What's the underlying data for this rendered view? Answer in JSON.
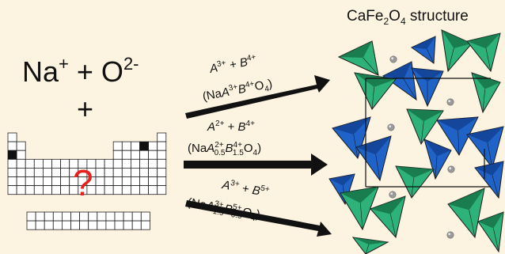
{
  "reactants": {
    "line1": {
      "a": "Na",
      "a_sup": "+",
      "plus": " + ",
      "b": "O",
      "b_sup": "2-"
    },
    "plus": "+",
    "question": "?"
  },
  "structure_title": {
    "base1": "CaFe",
    "sub1": "2",
    "base2": "O",
    "sub2": "4",
    "rest": " structure"
  },
  "arrows": [
    {
      "top": {
        "a": "A",
        "a_sup": "3+",
        "plus": " + ",
        "b": "B",
        "b_sup": "4+"
      },
      "bottom": {
        "open": "(Na",
        "a": "A",
        "a_sup": "3+",
        "b": "B",
        "b_sup": "4+",
        "o": "O",
        "o_sub": "4",
        "close": ")"
      }
    },
    {
      "top": {
        "a": "A",
        "a_sup": "2+",
        "plus": " + ",
        "b": "B",
        "b_sup": "4+"
      },
      "bottom": {
        "open": "(Na",
        "a": "A",
        "a_sup": "2+",
        "a_sub": "0.5",
        "b": "B",
        "b_sup": "4+",
        "b_sub": "1.5",
        "o": "O",
        "o_sub": "4",
        "close": ")"
      }
    },
    {
      "top": {
        "a": "A",
        "a_sup": "3+",
        "plus": " + ",
        "b": "B",
        "b_sup": "5+"
      },
      "bottom": {
        "open": "(Na",
        "a": "A",
        "a_sup": "3+",
        "a_sub": "1.5",
        "b": "B",
        "b_sup": "5+",
        "b_sub": "0.5",
        "o": "O",
        "o_sub": "4",
        "close": ")"
      }
    }
  ],
  "colors": {
    "background": "#fdf3e1",
    "question": "#e8201b",
    "arrow": "#111111",
    "octahedron_blue": "#1f63c9",
    "octahedron_blue_dark": "#123e8c",
    "octahedron_green": "#2db37a",
    "octahedron_green_dark": "#136b43",
    "cation": "#9a9a9a"
  },
  "icons": [
    "periodic-table-grid-icon",
    "crystal-structure-icon"
  ]
}
